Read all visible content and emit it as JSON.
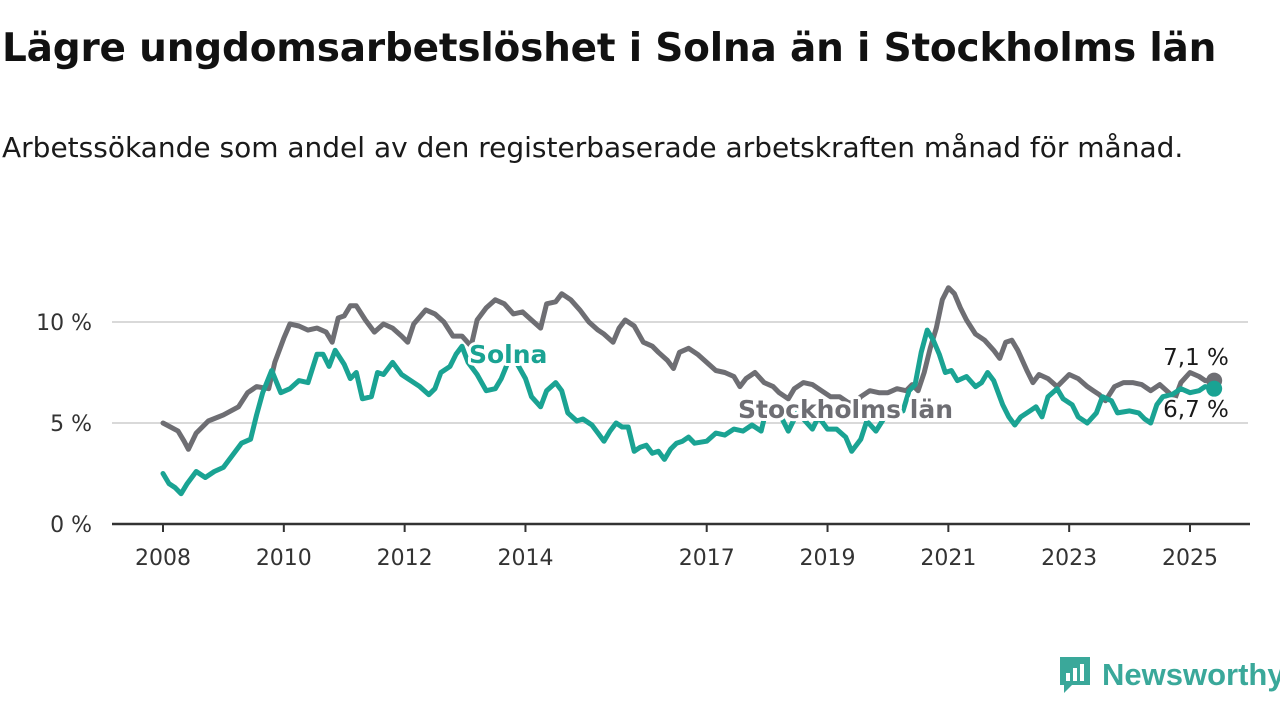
{
  "title": "Lägre ungdomsarbetslöshet i Solna än i Stockholms län",
  "subtitle": "Arbetssökande som andel av den registerbaserade arbetskraften månad för månad.",
  "logo_text": "Newsworthy",
  "chart_data": {
    "type": "line",
    "title": "Lägre ungdomsarbetslöshet i Solna än i Stockholms län",
    "subtitle": "Arbetssökande som andel av den registerbaserade arbetskraften månad för månad.",
    "xlabel": "",
    "ylabel": "",
    "xlim": [
      2008,
      2026
    ],
    "ylim": [
      0,
      10
    ],
    "yticks": [
      0,
      5,
      10
    ],
    "ytick_labels": [
      "0 %",
      "5 %",
      "10 %"
    ],
    "xticks": [
      2008,
      2010,
      2012,
      2014,
      2017,
      2019,
      2021,
      2023,
      2025
    ],
    "xtick_labels": [
      "2008",
      "2010",
      "2012",
      "2014",
      "2017",
      "2019",
      "2021",
      "2023",
      "2025"
    ],
    "grid": true,
    "colors": {
      "Solna": "#1aa393",
      "Stockholms län": "#6e6e73"
    },
    "end_labels": [
      {
        "series": "Stockholms län",
        "text": "7,1 %",
        "value": 7.1
      },
      {
        "series": "Solna",
        "text": "6,7 %",
        "value": 6.7
      }
    ],
    "series": [
      {
        "name": "Stockholms län",
        "label": "Stockholms län",
        "points": [
          [
            2008.0,
            5.0
          ],
          [
            2008.25,
            4.6
          ],
          [
            2008.35,
            4.1
          ],
          [
            2008.42,
            3.7
          ],
          [
            2008.55,
            4.5
          ],
          [
            2008.75,
            5.1
          ],
          [
            2009.0,
            5.4
          ],
          [
            2009.25,
            5.8
          ],
          [
            2009.4,
            6.5
          ],
          [
            2009.55,
            6.8
          ],
          [
            2009.75,
            6.7
          ],
          [
            2009.85,
            8.0
          ],
          [
            2010.0,
            9.2
          ],
          [
            2010.1,
            9.9
          ],
          [
            2010.25,
            9.8
          ],
          [
            2010.4,
            9.6
          ],
          [
            2010.55,
            9.7
          ],
          [
            2010.7,
            9.5
          ],
          [
            2010.8,
            9.0
          ],
          [
            2010.9,
            10.2
          ],
          [
            2011.0,
            10.3
          ],
          [
            2011.1,
            10.8
          ],
          [
            2011.2,
            10.8
          ],
          [
            2011.35,
            10.1
          ],
          [
            2011.5,
            9.5
          ],
          [
            2011.65,
            9.9
          ],
          [
            2011.8,
            9.7
          ],
          [
            2011.95,
            9.3
          ],
          [
            2012.05,
            9.0
          ],
          [
            2012.15,
            9.9
          ],
          [
            2012.35,
            10.6
          ],
          [
            2012.5,
            10.4
          ],
          [
            2012.65,
            10.0
          ],
          [
            2012.8,
            9.3
          ],
          [
            2012.95,
            9.3
          ],
          [
            2013.1,
            8.8
          ],
          [
            2013.2,
            10.1
          ],
          [
            2013.35,
            10.7
          ],
          [
            2013.5,
            11.1
          ],
          [
            2013.65,
            10.9
          ],
          [
            2013.8,
            10.4
          ],
          [
            2013.95,
            10.5
          ],
          [
            2014.1,
            10.1
          ],
          [
            2014.25,
            9.7
          ],
          [
            2014.35,
            10.9
          ],
          [
            2014.5,
            11.0
          ],
          [
            2014.6,
            11.4
          ],
          [
            2014.75,
            11.1
          ],
          [
            2014.9,
            10.6
          ],
          [
            2015.05,
            10.0
          ],
          [
            2015.2,
            9.6
          ],
          [
            2015.3,
            9.4
          ],
          [
            2015.45,
            9.0
          ],
          [
            2015.55,
            9.7
          ],
          [
            2015.65,
            10.1
          ],
          [
            2015.8,
            9.8
          ],
          [
            2015.95,
            9.0
          ],
          [
            2016.1,
            8.8
          ],
          [
            2016.2,
            8.5
          ],
          [
            2016.35,
            8.1
          ],
          [
            2016.45,
            7.7
          ],
          [
            2016.55,
            8.5
          ],
          [
            2016.7,
            8.7
          ],
          [
            2016.85,
            8.4
          ],
          [
            2017.0,
            8.0
          ],
          [
            2017.15,
            7.6
          ],
          [
            2017.3,
            7.5
          ],
          [
            2017.45,
            7.3
          ],
          [
            2017.55,
            6.8
          ],
          [
            2017.65,
            7.2
          ],
          [
            2017.8,
            7.5
          ],
          [
            2017.95,
            7.0
          ],
          [
            2018.1,
            6.8
          ],
          [
            2018.2,
            6.5
          ],
          [
            2018.35,
            6.2
          ],
          [
            2018.45,
            6.7
          ],
          [
            2018.6,
            7.0
          ],
          [
            2018.75,
            6.9
          ],
          [
            2018.9,
            6.6
          ],
          [
            2019.05,
            6.3
          ],
          [
            2019.2,
            6.3
          ],
          [
            2019.35,
            6.0
          ],
          [
            2019.45,
            6.0
          ],
          [
            2019.55,
            6.3
          ],
          [
            2019.7,
            6.6
          ],
          [
            2019.85,
            6.5
          ],
          [
            2020.0,
            6.5
          ],
          [
            2020.15,
            6.7
          ],
          [
            2020.3,
            6.6
          ],
          [
            2020.4,
            6.9
          ],
          [
            2020.5,
            6.6
          ],
          [
            2020.6,
            7.5
          ],
          [
            2020.7,
            8.7
          ],
          [
            2020.8,
            9.7
          ],
          [
            2020.9,
            11.1
          ],
          [
            2021.0,
            11.7
          ],
          [
            2021.1,
            11.4
          ],
          [
            2021.2,
            10.7
          ],
          [
            2021.3,
            10.1
          ],
          [
            2021.45,
            9.4
          ],
          [
            2021.6,
            9.1
          ],
          [
            2021.75,
            8.6
          ],
          [
            2021.85,
            8.2
          ],
          [
            2021.95,
            9.0
          ],
          [
            2022.05,
            9.1
          ],
          [
            2022.15,
            8.6
          ],
          [
            2022.3,
            7.6
          ],
          [
            2022.4,
            7.0
          ],
          [
            2022.5,
            7.4
          ],
          [
            2022.65,
            7.2
          ],
          [
            2022.8,
            6.8
          ],
          [
            2022.9,
            7.1
          ],
          [
            2023.0,
            7.4
          ],
          [
            2023.15,
            7.2
          ],
          [
            2023.3,
            6.8
          ],
          [
            2023.4,
            6.6
          ],
          [
            2023.5,
            6.4
          ],
          [
            2023.6,
            6.1
          ],
          [
            2023.75,
            6.8
          ],
          [
            2023.9,
            7.0
          ],
          [
            2024.05,
            7.0
          ],
          [
            2024.2,
            6.9
          ],
          [
            2024.35,
            6.6
          ],
          [
            2024.5,
            6.9
          ],
          [
            2024.65,
            6.5
          ],
          [
            2024.75,
            6.2
          ],
          [
            2024.85,
            7.0
          ],
          [
            2025.0,
            7.5
          ],
          [
            2025.15,
            7.3
          ],
          [
            2025.25,
            7.1
          ],
          [
            2025.4,
            7.1
          ]
        ]
      },
      {
        "name": "Solna",
        "label": "Solna",
        "points": [
          [
            2008.0,
            2.5
          ],
          [
            2008.1,
            2.0
          ],
          [
            2008.2,
            1.8
          ],
          [
            2008.3,
            1.5
          ],
          [
            2008.4,
            2.0
          ],
          [
            2008.55,
            2.6
          ],
          [
            2008.7,
            2.3
          ],
          [
            2008.85,
            2.6
          ],
          [
            2009.0,
            2.8
          ],
          [
            2009.15,
            3.4
          ],
          [
            2009.3,
            4.0
          ],
          [
            2009.45,
            4.2
          ],
          [
            2009.55,
            5.4
          ],
          [
            2009.65,
            6.5
          ],
          [
            2009.8,
            7.6
          ],
          [
            2009.95,
            6.5
          ],
          [
            2010.1,
            6.7
          ],
          [
            2010.25,
            7.1
          ],
          [
            2010.4,
            7.0
          ],
          [
            2010.55,
            8.4
          ],
          [
            2010.65,
            8.4
          ],
          [
            2010.75,
            7.8
          ],
          [
            2010.85,
            8.6
          ],
          [
            2011.0,
            7.9
          ],
          [
            2011.1,
            7.2
          ],
          [
            2011.2,
            7.5
          ],
          [
            2011.3,
            6.2
          ],
          [
            2011.45,
            6.3
          ],
          [
            2011.55,
            7.5
          ],
          [
            2011.65,
            7.4
          ],
          [
            2011.8,
            8.0
          ],
          [
            2011.95,
            7.4
          ],
          [
            2012.1,
            7.1
          ],
          [
            2012.25,
            6.8
          ],
          [
            2012.4,
            6.4
          ],
          [
            2012.5,
            6.7
          ],
          [
            2012.6,
            7.5
          ],
          [
            2012.75,
            7.8
          ],
          [
            2012.85,
            8.4
          ],
          [
            2012.95,
            8.8
          ],
          [
            2013.05,
            8.0
          ],
          [
            2013.2,
            7.4
          ],
          [
            2013.35,
            6.6
          ],
          [
            2013.5,
            6.7
          ],
          [
            2013.6,
            7.2
          ],
          [
            2013.75,
            8.3
          ],
          [
            2013.85,
            8.0
          ],
          [
            2014.0,
            7.2
          ],
          [
            2014.1,
            6.3
          ],
          [
            2014.25,
            5.8
          ],
          [
            2014.35,
            6.6
          ],
          [
            2014.5,
            7.0
          ],
          [
            2014.6,
            6.6
          ],
          [
            2014.7,
            5.5
          ],
          [
            2014.85,
            5.1
          ],
          [
            2014.95,
            5.2
          ],
          [
            2015.1,
            4.9
          ],
          [
            2015.2,
            4.5
          ],
          [
            2015.3,
            4.1
          ],
          [
            2015.4,
            4.6
          ],
          [
            2015.5,
            5.0
          ],
          [
            2015.6,
            4.8
          ],
          [
            2015.7,
            4.8
          ],
          [
            2015.8,
            3.6
          ],
          [
            2015.9,
            3.8
          ],
          [
            2016.0,
            3.9
          ],
          [
            2016.1,
            3.5
          ],
          [
            2016.2,
            3.6
          ],
          [
            2016.3,
            3.2
          ],
          [
            2016.4,
            3.7
          ],
          [
            2016.5,
            4.0
          ],
          [
            2016.6,
            4.1
          ],
          [
            2016.7,
            4.3
          ],
          [
            2016.8,
            4.0
          ],
          [
            2017.0,
            4.1
          ],
          [
            2017.15,
            4.5
          ],
          [
            2017.3,
            4.4
          ],
          [
            2017.45,
            4.7
          ],
          [
            2017.6,
            4.6
          ],
          [
            2017.75,
            4.9
          ],
          [
            2017.9,
            4.6
          ],
          [
            2018.0,
            5.8
          ],
          [
            2018.1,
            5.6
          ],
          [
            2018.25,
            5.2
          ],
          [
            2018.35,
            4.6
          ],
          [
            2018.5,
            5.5
          ],
          [
            2018.6,
            5.2
          ],
          [
            2018.75,
            4.7
          ],
          [
            2018.85,
            5.3
          ],
          [
            2019.0,
            4.7
          ],
          [
            2019.15,
            4.7
          ],
          [
            2019.3,
            4.3
          ],
          [
            2019.4,
            3.6
          ],
          [
            2019.55,
            4.2
          ],
          [
            2019.65,
            5.1
          ],
          [
            2019.8,
            4.6
          ],
          [
            2019.95,
            5.3
          ],
          [
            2020.05,
            5.3
          ],
          [
            2020.15,
            5.7
          ],
          [
            2020.25,
            5.6
          ],
          [
            2020.35,
            6.6
          ],
          [
            2020.45,
            6.9
          ],
          [
            2020.55,
            8.5
          ],
          [
            2020.65,
            9.6
          ],
          [
            2020.75,
            9.1
          ],
          [
            2020.85,
            8.4
          ],
          [
            2020.95,
            7.5
          ],
          [
            2021.05,
            7.6
          ],
          [
            2021.15,
            7.1
          ],
          [
            2021.3,
            7.3
          ],
          [
            2021.45,
            6.8
          ],
          [
            2021.55,
            7.0
          ],
          [
            2021.65,
            7.5
          ],
          [
            2021.75,
            7.1
          ],
          [
            2021.9,
            5.9
          ],
          [
            2022.0,
            5.3
          ],
          [
            2022.1,
            4.9
          ],
          [
            2022.2,
            5.3
          ],
          [
            2022.35,
            5.6
          ],
          [
            2022.45,
            5.8
          ],
          [
            2022.55,
            5.3
          ],
          [
            2022.65,
            6.3
          ],
          [
            2022.8,
            6.7
          ],
          [
            2022.9,
            6.2
          ],
          [
            2023.05,
            5.9
          ],
          [
            2023.15,
            5.3
          ],
          [
            2023.3,
            5.0
          ],
          [
            2023.45,
            5.5
          ],
          [
            2023.55,
            6.3
          ],
          [
            2023.7,
            6.1
          ],
          [
            2023.8,
            5.5
          ],
          [
            2024.0,
            5.6
          ],
          [
            2024.15,
            5.5
          ],
          [
            2024.25,
            5.2
          ],
          [
            2024.35,
            5.0
          ],
          [
            2024.45,
            5.9
          ],
          [
            2024.55,
            6.3
          ],
          [
            2024.7,
            6.4
          ],
          [
            2024.85,
            6.7
          ],
          [
            2025.0,
            6.5
          ],
          [
            2025.15,
            6.6
          ],
          [
            2025.25,
            6.8
          ],
          [
            2025.4,
            6.7
          ]
        ]
      }
    ]
  }
}
